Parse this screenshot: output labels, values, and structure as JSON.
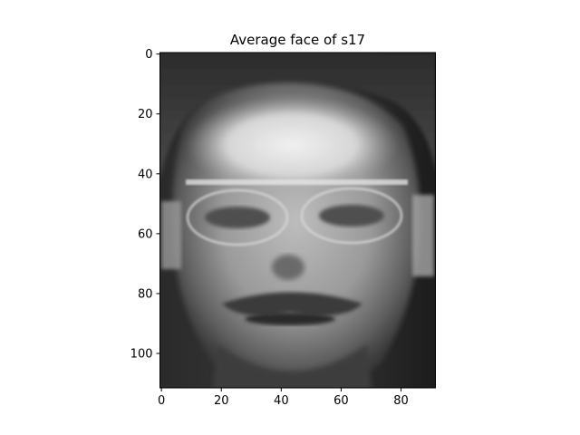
{
  "chart_data": {
    "type": "heatmap",
    "title": "Average face of s17",
    "colormap": "gray",
    "image_shape": [
      112,
      92
    ],
    "xlim": [
      -0.5,
      91.5
    ],
    "ylim": [
      111.5,
      -0.5
    ],
    "x_ticks": [
      0,
      20,
      40,
      60,
      80
    ],
    "y_ticks": [
      0,
      20,
      40,
      60,
      80,
      100
    ],
    "x_tick_labels": [
      "0",
      "20",
      "40",
      "60",
      "80"
    ],
    "y_tick_labels": [
      "0",
      "20",
      "40",
      "60",
      "80",
      "100"
    ],
    "grid": false,
    "colors": {
      "frame": "#000000",
      "background": "#ffffff"
    }
  }
}
